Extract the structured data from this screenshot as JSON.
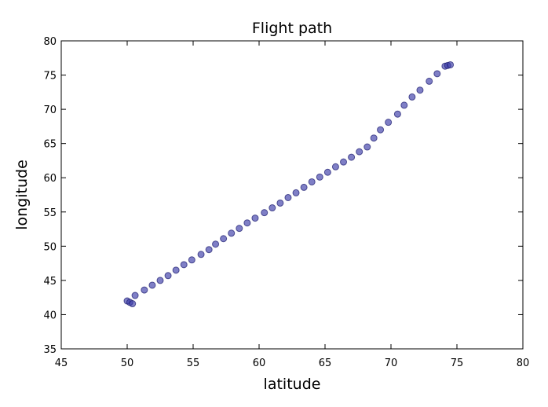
{
  "chart_data": {
    "type": "scatter",
    "title": "Flight path",
    "xlabel": "latitude",
    "ylabel": "longitude",
    "xlim": [
      45,
      80
    ],
    "ylim": [
      35,
      80
    ],
    "xticks": [
      45,
      50,
      55,
      60,
      65,
      70,
      75,
      80
    ],
    "yticks": [
      35,
      40,
      45,
      50,
      55,
      60,
      65,
      70,
      75,
      80
    ],
    "grid": false,
    "legend": "none",
    "marker_color": "#3b3ba8",
    "series": [
      {
        "x": [
          50.0,
          50.2,
          50.4,
          50.6,
          51.3,
          51.9,
          52.5,
          53.1,
          53.7,
          54.3,
          54.9,
          55.6,
          56.2,
          56.7,
          57.3,
          57.9,
          58.5,
          59.1,
          59.7,
          60.4,
          61.0,
          61.6,
          62.2,
          62.8,
          63.4,
          64.0,
          64.6,
          65.2,
          65.8,
          66.4,
          67.0,
          67.6,
          68.2,
          68.7,
          69.2,
          69.8,
          70.5,
          71.0,
          71.6,
          72.2,
          72.9,
          73.5,
          74.1,
          74.3,
          74.5
        ],
        "y": [
          42.0,
          41.8,
          41.6,
          42.8,
          43.6,
          44.3,
          45.0,
          45.7,
          46.5,
          47.3,
          48.0,
          48.8,
          49.5,
          50.3,
          51.1,
          51.9,
          52.6,
          53.4,
          54.1,
          54.9,
          55.6,
          56.3,
          57.1,
          57.8,
          58.6,
          59.4,
          60.1,
          60.8,
          61.6,
          62.3,
          63.0,
          63.8,
          64.5,
          65.8,
          67.0,
          68.1,
          69.3,
          70.6,
          71.8,
          72.8,
          74.1,
          75.2,
          76.3,
          76.4,
          76.5
        ]
      }
    ]
  }
}
